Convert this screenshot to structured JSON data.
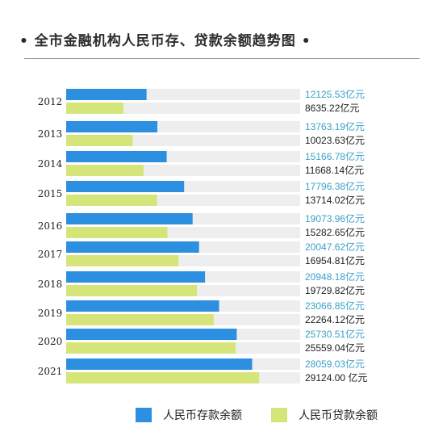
{
  "title": "• 全市金融机构人民币存、贷款余额趋势图 •",
  "colors": {
    "deposit": "#2d8fe0",
    "loan": "#d6e57a",
    "track": "#eeeeee",
    "deposit_text": "#3aa0c8",
    "loan_text": "#222222"
  },
  "chart_data": {
    "type": "bar",
    "orientation": "horizontal",
    "title": "全市金融机构人民币存、贷款余额趋势图",
    "categories": [
      "2012",
      "2013",
      "2014",
      "2015",
      "2016",
      "2017",
      "2018",
      "2019",
      "2020",
      "2021"
    ],
    "series": [
      {
        "name": "人民币存款余额",
        "values": [
          12125.53,
          13763.19,
          15166.78,
          17796.38,
          19073.96,
          20047.62,
          20948.18,
          23066.85,
          25730.51,
          28059.03
        ]
      },
      {
        "name": "人民币贷款余额",
        "values": [
          8635.22,
          10023.63,
          11668.14,
          13714.02,
          15282.65,
          16954.81,
          19729.82,
          22264.12,
          25559.04,
          29124.0
        ]
      }
    ],
    "value_labels": {
      "deposit": [
        "12125.53亿元",
        "13763.19亿元",
        "15166.78亿元",
        "17796.38亿元",
        "19073.96亿元",
        "20047.62亿元",
        "20948.18亿元",
        "23066.85亿元",
        "25730.51亿元",
        "28059.03亿元"
      ],
      "loan": [
        "8635.22亿元",
        "10023.63亿元",
        "11668.14亿元",
        "13714.02亿元",
        "15282.65亿元",
        "16954.81亿元",
        "19729.82亿元",
        "22264.12亿元",
        "25559.04亿元",
        "29124.00 亿元"
      ]
    },
    "unit": "亿元",
    "legend_position": "bottom",
    "grid": false
  },
  "legend": {
    "deposit_label": "人民币存款余额",
    "loan_label": "人民币贷款余额"
  }
}
